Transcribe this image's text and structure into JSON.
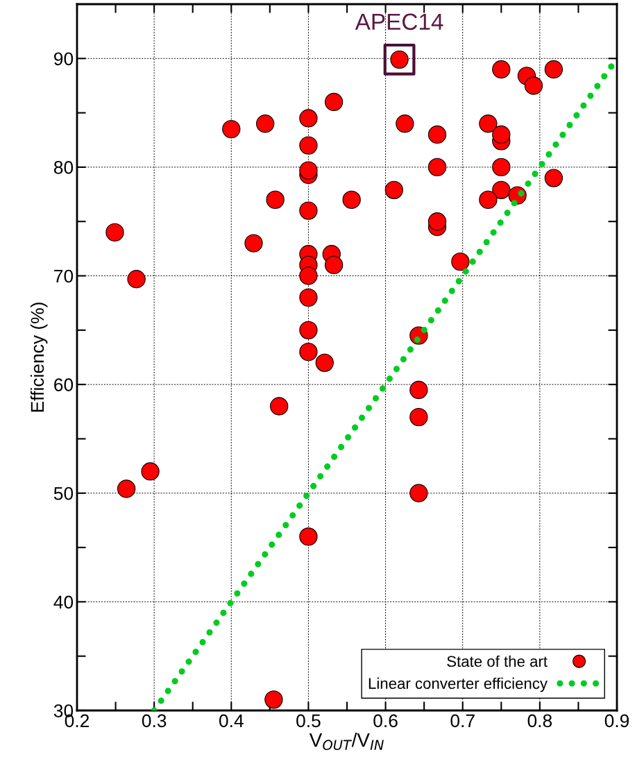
{
  "chart_data": {
    "type": "scatter",
    "xlabel": "V$_{OUT}$/V$_{IN}$",
    "ylabel": "Efficiency (%)",
    "xlim": [
      0.2,
      0.9
    ],
    "ylim": [
      30,
      95
    ],
    "xticks": [
      0.2,
      {
        "value": 0.25,
        "label": null
      },
      0.3,
      {
        "value": 0.35,
        "label": null
      },
      0.4,
      {
        "value": 0.45,
        "label": null
      },
      0.5,
      {
        "value": 0.55,
        "label": null
      },
      0.6,
      {
        "value": 0.65,
        "label": null
      },
      0.7,
      {
        "value": 0.75,
        "label": null
      },
      0.8,
      {
        "value": 0.85,
        "label": null
      },
      0.9
    ],
    "yticks": [
      30,
      {
        "value": 35,
        "label": null
      },
      40,
      {
        "value": 45,
        "label": null
      },
      50,
      {
        "value": 55,
        "label": null
      },
      60,
      {
        "value": 65,
        "label": null
      },
      70,
      {
        "value": 75,
        "label": null
      },
      80,
      {
        "value": 85,
        "label": null
      },
      90
    ],
    "grid": true,
    "legend": "bottom right",
    "series": [
      {
        "name": "State of the art",
        "color": "#ff0000",
        "marker": "circle",
        "x": [
          0.533,
          0.5,
          0.444,
          0.4,
          0.5,
          0.5,
          0.5,
          0.457,
          0.556,
          0.5,
          0.249,
          0.429,
          0.5,
          0.53,
          0.5,
          0.533,
          0.5,
          0.277,
          0.5,
          0.5,
          0.5,
          0.521,
          0.618,
          0.75,
          0.783,
          0.792,
          0.818,
          0.625,
          0.667,
          0.733,
          0.75,
          0.75,
          0.667,
          0.75,
          0.611,
          0.818,
          0.75,
          0.733,
          0.771,
          0.667,
          0.667,
          0.697,
          0.643,
          0.643,
          0.643,
          0.643,
          0.462,
          0.295,
          0.264,
          0.5,
          0.455
        ],
        "values": [
          86.0,
          84.5,
          84.0,
          83.5,
          82.0,
          79.3,
          79.7,
          77.0,
          77.0,
          76.0,
          74.0,
          73.0,
          72.0,
          72.0,
          71.0,
          71.0,
          70.0,
          69.7,
          68.0,
          65.0,
          63.0,
          62.0,
          89.9,
          89.0,
          88.4,
          87.5,
          89.0,
          84.0,
          83.0,
          84.0,
          82.4,
          83.0,
          80.0,
          80.0,
          77.9,
          79.0,
          77.9,
          77.0,
          77.4,
          74.5,
          75.0,
          71.3,
          64.5,
          59.5,
          57.0,
          50.0,
          58.0,
          52.0,
          50.4,
          46.0,
          31.0
        ]
      },
      {
        "name": "Linear converter efficiency",
        "type": "line",
        "color": "#00cc22",
        "line_style": "dotted",
        "marker": "none",
        "x": [
          0.3,
          0.895
        ],
        "values": [
          30,
          89.5
        ]
      }
    ],
    "annotations": [
      {
        "text": "APEC14",
        "x": 0.618,
        "y": 89.9
      }
    ]
  }
}
